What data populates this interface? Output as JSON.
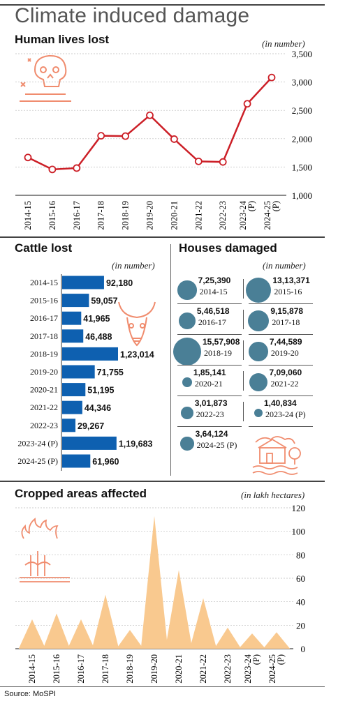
{
  "title": "Climate induced damage",
  "source": "Source: MoSPI",
  "colors": {
    "line": "#cc1f27",
    "bar": "#0e60b0",
    "bubble": "#4a7f96",
    "area": "#f9c98f",
    "icon": "#f08c6e"
  },
  "icons": {
    "lives": "skull-icon",
    "cattle": "bull-skull-icon",
    "houses": "flooded-house-icon",
    "crops": "burning-crop-icon"
  },
  "chart_data": [
    {
      "type": "line",
      "title": "Human lives lost",
      "unit": "(in number)",
      "categories": [
        "2014-15",
        "2015-16",
        "2016-17",
        "2017-18",
        "2018-19",
        "2019-20",
        "2020-21",
        "2021-22",
        "2022-23",
        "2023-24 (P)",
        "2024-25 (P)"
      ],
      "values": [
        1668,
        1457,
        1481,
        2051,
        2045,
        2413,
        1992,
        1599,
        1589,
        2616,
        3080
      ],
      "ylim": [
        1000,
        3500
      ],
      "yticks": [
        "1,000",
        "1,500",
        "2,000",
        "2,500",
        "3,000",
        "3,500"
      ],
      "ytick_values": [
        1000,
        1500,
        2000,
        2500,
        3000,
        3500
      ],
      "grid": true
    },
    {
      "type": "bar",
      "orientation": "horizontal",
      "title": "Cattle lost",
      "unit": "(in number)",
      "categories": [
        "2014-15",
        "2015-16",
        "2016-17",
        "2017-18",
        "2018-19",
        "2019-20",
        "2020-21",
        "2021-22",
        "2022-23",
        "2023-24 (P)",
        "2024-25 (P)"
      ],
      "values": [
        92180,
        59057,
        41965,
        46488,
        123014,
        71755,
        51195,
        44346,
        29267,
        119683,
        61960
      ],
      "labels": [
        "92,180",
        "59,057",
        "41,965",
        "46,488",
        "1,23,014",
        "71,755",
        "51,195",
        "44,346",
        "29,267",
        "1,19,683",
        "61,960"
      ]
    },
    {
      "type": "scatter",
      "subtype": "bubble",
      "title": "Houses damaged",
      "unit": "(in number)",
      "categories": [
        "2014-15",
        "2015-16",
        "2016-17",
        "2017-18",
        "2018-19",
        "2019-20",
        "2020-21",
        "2021-22",
        "2022-23",
        "2023-24 (P)",
        "2024-25 (P)"
      ],
      "values": [
        725390,
        1313371,
        546518,
        915878,
        1557908,
        744589,
        185141,
        709060,
        301873,
        140834,
        364124
      ],
      "labels": [
        "7,25,390",
        "13,13,371",
        "5,46,518",
        "9,15,878",
        "15,57,908",
        "7,44,589",
        "1,85,141",
        "7,09,060",
        "3,01,873",
        "1,40,834",
        "3,64,124"
      ]
    },
    {
      "type": "area",
      "title": "Cropped areas affected",
      "unit": "(in lakh hectares)",
      "categories": [
        "2014-15",
        "2015-16",
        "2016-17",
        "2017-18",
        "2018-19",
        "2019-20",
        "2020-21",
        "2021-22",
        "2022-23",
        "2023-24 (P)",
        "2024-25 (P)"
      ],
      "values": [
        25,
        30,
        25,
        46,
        16,
        113,
        67,
        43,
        18,
        13,
        14
      ],
      "ylim": [
        0,
        120
      ],
      "yticks": [
        "0",
        "20",
        "40",
        "60",
        "80",
        "100",
        "120"
      ],
      "ytick_values": [
        0,
        20,
        40,
        60,
        80,
        100,
        120
      ]
    }
  ]
}
